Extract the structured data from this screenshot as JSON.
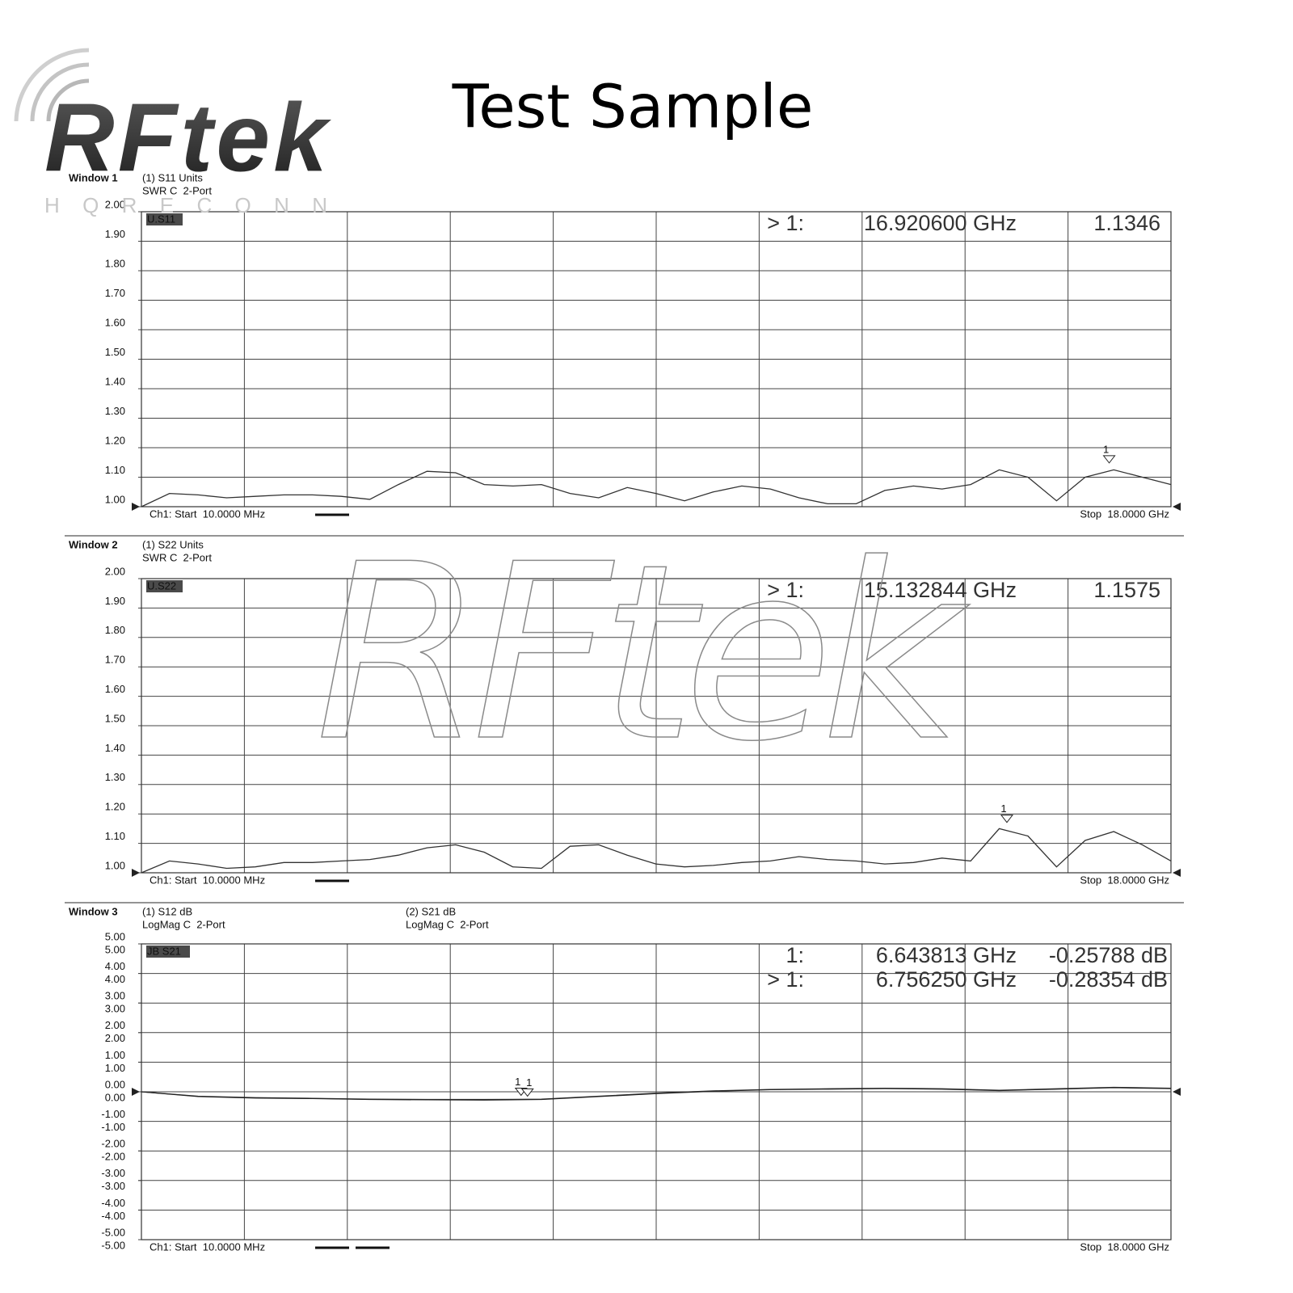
{
  "title": "Test Sample",
  "logo": {
    "brand": "RFtek",
    "sub": "H Q R E C O N N"
  },
  "watermark": "RFtek",
  "chart_data": [
    {
      "type": "line",
      "window": "Window 1",
      "tag": "U.S11",
      "start_label": "Ch1: Start  10.0000 MHz",
      "stop_label": "Stop  18.0000 GHz",
      "xlim": [
        0.01,
        18
      ],
      "ylim": [
        1,
        2
      ],
      "grid": true,
      "grid_columns": 10,
      "yticks": [
        {
          "value": 2,
          "label": "2.00"
        },
        {
          "value": 1.9,
          "label": "1.90"
        },
        {
          "value": 1.8,
          "label": "1.80"
        },
        {
          "value": 1.7,
          "label": "1.70"
        },
        {
          "value": 1.6,
          "label": "1.60"
        },
        {
          "value": 1.5,
          "label": "1.50"
        },
        {
          "value": 1.4,
          "label": "1.40"
        },
        {
          "value": 1.3,
          "label": "1.30"
        },
        {
          "value": 1.2,
          "label": "1.20"
        },
        {
          "value": 1.1,
          "label": "1.10"
        },
        {
          "value": 1,
          "label": "1.00"
        }
      ],
      "x": [
        0.01,
        0.5,
        1,
        1.5,
        2,
        2.5,
        3,
        3.5,
        4,
        4.5,
        5,
        5.5,
        6,
        6.5,
        7,
        7.5,
        8,
        8.5,
        9,
        9.5,
        10,
        10.5,
        11,
        11.5,
        12,
        12.5,
        13,
        13.5,
        14,
        14.5,
        15,
        15.5,
        16,
        16.5,
        17,
        17.5,
        18
      ],
      "series": [
        {
          "name": "(1) S11 Units",
          "format": "SWR C  2-Port",
          "color": "#333333",
          "values": [
            1.0,
            1.045,
            1.04,
            1.03,
            1.035,
            1.04,
            1.04,
            1.035,
            1.025,
            1.075,
            1.12,
            1.115,
            1.075,
            1.07,
            1.075,
            1.045,
            1.03,
            1.065,
            1.045,
            1.02,
            1.05,
            1.07,
            1.06,
            1.03,
            1.01,
            1.01,
            1.055,
            1.07,
            1.06,
            1.075,
            1.125,
            1.1,
            1.02,
            1.1,
            1.125,
            1.1,
            1.075
          ]
        }
      ],
      "markers": [
        {
          "name": "1",
          "prefix": "> 1:",
          "x": {
            "value": 16.9206,
            "label": "16.920600 GHz"
          },
          "y": 1.1346
        }
      ]
    },
    {
      "type": "line",
      "window": "Window 2",
      "tag": "U.S22",
      "start_label": "Ch1: Start  10.0000 MHz",
      "stop_label": "Stop  18.0000 GHz",
      "xlim": [
        0.01,
        18
      ],
      "ylim": [
        1,
        2
      ],
      "grid": true,
      "grid_columns": 10,
      "yticks": [
        {
          "value": 2,
          "label": "2.00"
        },
        {
          "value": 1.9,
          "label": "1.90"
        },
        {
          "value": 1.8,
          "label": "1.80"
        },
        {
          "value": 1.7,
          "label": "1.70"
        },
        {
          "value": 1.6,
          "label": "1.60"
        },
        {
          "value": 1.5,
          "label": "1.50"
        },
        {
          "value": 1.4,
          "label": "1.40"
        },
        {
          "value": 1.3,
          "label": "1.30"
        },
        {
          "value": 1.2,
          "label": "1.20"
        },
        {
          "value": 1.1,
          "label": "1.10"
        },
        {
          "value": 1,
          "label": "1.00"
        }
      ],
      "x": [
        0.01,
        0.5,
        1,
        1.5,
        2,
        2.5,
        3,
        3.5,
        4,
        4.5,
        5,
        5.5,
        6,
        6.5,
        7,
        7.5,
        8,
        8.5,
        9,
        9.5,
        10,
        10.5,
        11,
        11.5,
        12,
        12.5,
        13,
        13.5,
        14,
        14.5,
        15,
        15.5,
        16,
        16.5,
        17,
        17.5,
        18
      ],
      "series": [
        {
          "name": "(1) S22 Units",
          "format": "SWR C  2-Port",
          "color": "#333333",
          "values": [
            1.0,
            1.04,
            1.03,
            1.015,
            1.02,
            1.035,
            1.035,
            1.04,
            1.045,
            1.06,
            1.085,
            1.095,
            1.07,
            1.02,
            1.015,
            1.09,
            1.095,
            1.06,
            1.03,
            1.02,
            1.025,
            1.035,
            1.04,
            1.055,
            1.045,
            1.04,
            1.03,
            1.035,
            1.05,
            1.04,
            1.15,
            1.125,
            1.02,
            1.11,
            1.14,
            1.095,
            1.04
          ]
        }
      ],
      "markers": [
        {
          "name": "1",
          "prefix": "> 1:",
          "x": {
            "value": 15.132844,
            "label": "15.132844 GHz"
          },
          "y": 1.1575
        }
      ]
    },
    {
      "type": "line",
      "window": "Window 3",
      "tag": "JB S21",
      "start_label": "Ch1: Start  10.0000 MHz",
      "stop_label": "Stop  18.0000 GHz",
      "xlim": [
        0.01,
        18
      ],
      "ylim": [
        -5,
        5
      ],
      "y2lim": [
        -5,
        5
      ],
      "grid": true,
      "grid_columns": 10,
      "yticks": [
        {
          "value": 5,
          "label": "5.00"
        },
        {
          "value": 4,
          "label": "4.00"
        },
        {
          "value": 3,
          "label": "3.00"
        },
        {
          "value": 2,
          "label": "2.00"
        },
        {
          "value": 1,
          "label": "1.00"
        },
        {
          "value": 0,
          "label": "0.00"
        },
        {
          "value": -1,
          "label": "-1.00"
        },
        {
          "value": -2,
          "label": "-2.00"
        },
        {
          "value": -3,
          "label": "-3.00"
        },
        {
          "value": -4,
          "label": "-4.00"
        },
        {
          "value": -5,
          "label": "-5.00"
        }
      ],
      "y2ticks": [
        {
          "value": 5,
          "label": "5.00"
        },
        {
          "value": 4,
          "label": "4.00"
        },
        {
          "value": 3,
          "label": "3.00"
        },
        {
          "value": 2,
          "label": "2.00"
        },
        {
          "value": 1,
          "label": "1.00"
        },
        {
          "value": 0,
          "label": "0.00"
        },
        {
          "value": -1,
          "label": "-1.00"
        },
        {
          "value": -2,
          "label": "-2.00"
        },
        {
          "value": -3,
          "label": "-3.00"
        },
        {
          "value": -4,
          "label": "-4.00"
        },
        {
          "value": -5,
          "label": "-5.00"
        }
      ],
      "x": [
        0.01,
        1,
        2,
        3,
        4,
        5,
        6,
        7,
        8,
        9,
        10,
        11,
        12,
        13,
        14,
        15,
        16,
        17,
        18
      ],
      "series": [
        {
          "name": "(1) S12 dB",
          "format": "LogMag C  2-Port",
          "color": "#333333",
          "values": [
            0,
            -0.15,
            -0.2,
            -0.22,
            -0.25,
            -0.26,
            -0.26,
            -0.25,
            -0.15,
            -0.05,
            0.03,
            0.08,
            0.1,
            0.12,
            0.1,
            0.05,
            0.1,
            0.15,
            0.12
          ]
        },
        {
          "name": "(2) S21 dB",
          "format": "LogMag C  2-Port",
          "color": "#222222",
          "axis": "y2",
          "values": [
            0,
            -0.16,
            -0.21,
            -0.23,
            -0.26,
            -0.27,
            -0.28,
            -0.26,
            -0.16,
            -0.06,
            0.02,
            0.07,
            0.09,
            0.11,
            0.09,
            0.04,
            0.09,
            0.14,
            0.11
          ]
        }
      ],
      "markers": [
        {
          "name": "1",
          "prefix": "1:",
          "x": {
            "value": 6.643813,
            "label": "6.643813 GHz"
          },
          "y": {
            "value": -0.25788,
            "label": "-0.25788 dB"
          }
        },
        {
          "name": "1",
          "prefix": "> 1:",
          "x": {
            "value": 6.75625,
            "label": "6.756250 GHz"
          },
          "y": {
            "value": -0.28354,
            "label": "-0.28354 dB"
          }
        }
      ]
    }
  ]
}
